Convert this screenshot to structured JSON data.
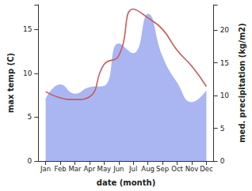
{
  "chart_data": {
    "type": "line",
    "x_label": "date (month)",
    "y_label": "max temp (C)",
    "y2_label": "med. precipitation (kg/m2)",
    "categories": [
      "Jan",
      "Feb",
      "Mar",
      "Apr",
      "May",
      "Jun",
      "Jul",
      "Aug",
      "Sep",
      "Oct",
      "Nov",
      "Dec"
    ],
    "series": [
      {
        "name": "med. precipitation (kg/m2)",
        "type": "area",
        "axis": "y2",
        "color": "#a9b6f2",
        "values": [
          9.5,
          11.7,
          10.3,
          11.3,
          11.5,
          18,
          16.5,
          22.5,
          16,
          12,
          9,
          10.8
        ]
      },
      {
        "name": "max temp (C)",
        "type": "line",
        "color": "#c85a5a",
        "values": [
          7.9,
          7.2,
          7.0,
          7.3,
          11.0,
          12.0,
          17.3,
          16.3,
          15.0,
          12.6,
          10.8,
          8.5
        ]
      }
    ],
    "ylim": [
      0,
      17.8
    ],
    "yticks": [
      0,
      5,
      10,
      15
    ],
    "y2lim": [
      0,
      23.9
    ],
    "y2ticks": [
      0,
      5,
      10,
      15,
      20
    ],
    "grid": false,
    "legend": "none"
  }
}
